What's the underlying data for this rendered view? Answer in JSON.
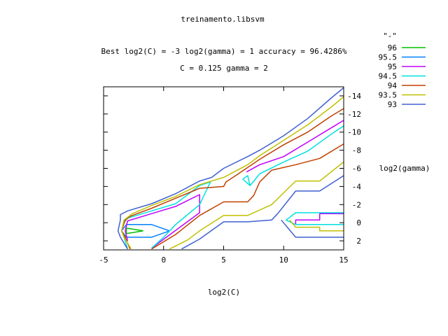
{
  "chart_data": {
    "type": "contour",
    "title": "treinamento.libsvm",
    "subtitle_1": "Best log2(C) = -3  log2(gamma) = 1  accuracy = 96.4286%",
    "subtitle_2": "C = 0.125  gamma = 2",
    "xlabel": "log2(C)",
    "ylabel": "log2(gamma)",
    "legend_title": "\"-\"",
    "legend_placement": "top-right",
    "grid": false,
    "xlim": [
      -5,
      15
    ],
    "ylim": [
      3,
      -15
    ],
    "x_ticks": [
      {
        "value": -5,
        "label": "-5"
      },
      {
        "value": 0,
        "label": "0"
      },
      {
        "value": 5,
        "label": "5"
      },
      {
        "value": 10,
        "label": "10"
      },
      {
        "value": 15,
        "label": "15"
      }
    ],
    "y_ticks": [
      {
        "value": -14,
        "label": "-14"
      },
      {
        "value": -12,
        "label": "-12"
      },
      {
        "value": -10,
        "label": "-10"
      },
      {
        "value": -8,
        "label": "-8"
      },
      {
        "value": -6,
        "label": "-6"
      },
      {
        "value": -4,
        "label": "-4"
      },
      {
        "value": -2,
        "label": "-2"
      },
      {
        "value": 0,
        "label": "0"
      },
      {
        "value": 2,
        "label": "2"
      }
    ],
    "series": [
      {
        "name": "96",
        "color": "#00c000",
        "lines": [
          [
            [
              -1.7,
              0.9
            ],
            [
              -3.1,
              0.6
            ],
            [
              -3.1,
              1.2
            ],
            [
              -1.7,
              0.9
            ]
          ]
        ]
      },
      {
        "name": "95.5",
        "color": "#0080ff",
        "lines": [
          [
            [
              0.5,
              0.9
            ],
            [
              -1.0,
              0.2
            ],
            [
              -3.1,
              0.2
            ],
            [
              -3.5,
              0.9
            ],
            [
              -3.1,
              1.6
            ],
            [
              -1.0,
              1.6
            ],
            [
              0.5,
              0.9
            ]
          ]
        ]
      },
      {
        "name": "95",
        "color": "#c000ff",
        "lines": [
          [
            [
              -3.0,
              2.0
            ],
            [
              -3.2,
              0.9
            ],
            [
              -3.0,
              -0.2
            ],
            [
              -1.0,
              -1.0
            ],
            [
              1.0,
              -1.8
            ],
            [
              3.0,
              -3.1
            ],
            [
              3.0,
              -1.1
            ],
            [
              -1.0,
              2.8
            ]
          ],
          [
            [
              6.9,
              -5.6
            ],
            [
              8.0,
              -6.4
            ],
            [
              10.0,
              -7.3
            ],
            [
              12.0,
              -8.9
            ],
            [
              14.0,
              -10.5
            ],
            [
              15.0,
              -11.3
            ]
          ],
          [
            [
              11.0,
              0.2
            ],
            [
              11.0,
              -0.3
            ],
            [
              13.0,
              -0.3
            ],
            [
              13.0,
              -1.0
            ],
            [
              15.0,
              -1.0
            ]
          ]
        ]
      },
      {
        "name": "94.5",
        "color": "#00e0e0",
        "lines": [
          [
            [
              -3.0,
              2.9
            ],
            [
              -3.3,
              1.6
            ],
            [
              -3.5,
              0.9
            ],
            [
              -3.3,
              0.0
            ],
            [
              -3.0,
              -0.5
            ],
            [
              -1.0,
              -1.3
            ],
            [
              1.0,
              -2.1
            ],
            [
              3.0,
              -4.1
            ],
            [
              3.9,
              -4.5
            ],
            [
              3.0,
              -2.0
            ],
            [
              1.0,
              0.2
            ],
            [
              0.0,
              1.6
            ],
            [
              -1.0,
              2.8
            ]
          ],
          [
            [
              6.6,
              -4.8
            ],
            [
              7.0,
              -5.2
            ],
            [
              7.2,
              -4.1
            ],
            [
              6.6,
              -4.8
            ]
          ],
          [
            [
              7.2,
              -4.1
            ],
            [
              8.0,
              -5.4
            ],
            [
              10.0,
              -6.7
            ],
            [
              12.0,
              -7.9
            ],
            [
              14.0,
              -9.8
            ],
            [
              15.0,
              -10.7
            ]
          ],
          [
            [
              11.0,
              0.2
            ],
            [
              10.2,
              -0.3
            ],
            [
              11.0,
              -1.1
            ],
            [
              15.0,
              -1.1
            ],
            [
              15.0,
              -1.1
            ]
          ],
          [
            [
              11.0,
              0.2
            ],
            [
              11.0,
              0.2
            ],
            [
              15.0,
              0.2
            ]
          ]
        ]
      },
      {
        "name": "94",
        "color": "#c04000",
        "lines": [
          [
            [
              -2.8,
              2.9
            ],
            [
              -3.2,
              1.6
            ],
            [
              -3.5,
              0.9
            ],
            [
              -3.2,
              -0.3
            ],
            [
              -2.8,
              -0.7
            ],
            [
              -1.0,
              -1.6
            ],
            [
              1.0,
              -2.7
            ],
            [
              3.0,
              -3.8
            ],
            [
              5.0,
              -4.0
            ],
            [
              5.2,
              -4.5
            ],
            [
              6.0,
              -5.2
            ],
            [
              7.0,
              -6.1
            ],
            [
              8.0,
              -7.0
            ],
            [
              10.0,
              -8.6
            ],
            [
              12.0,
              -10.0
            ],
            [
              14.0,
              -11.8
            ],
            [
              15.0,
              -12.6
            ]
          ],
          [
            [
              -1.0,
              2.9
            ],
            [
              1.0,
              1.3
            ],
            [
              3.0,
              -0.8
            ],
            [
              5.0,
              -2.3
            ],
            [
              7.0,
              -2.3
            ],
            [
              7.5,
              -3.0
            ],
            [
              8.0,
              -4.5
            ],
            [
              9.0,
              -5.8
            ],
            [
              11.0,
              -6.4
            ],
            [
              13.0,
              -7.1
            ],
            [
              15.0,
              -8.7
            ]
          ]
        ]
      },
      {
        "name": "93.5",
        "color": "#c0c000",
        "lines": [
          [
            [
              -2.7,
              2.9
            ],
            [
              -3.3,
              1.6
            ],
            [
              -3.5,
              0.9
            ],
            [
              -3.3,
              -0.3
            ],
            [
              -2.6,
              -1.0
            ],
            [
              -1.0,
              -1.9
            ],
            [
              1.0,
              -2.9
            ],
            [
              3.0,
              -4.2
            ],
            [
              5.0,
              -5.0
            ],
            [
              7.0,
              -6.4
            ],
            [
              8.0,
              -7.4
            ],
            [
              10.0,
              -9.1
            ],
            [
              12.0,
              -10.8
            ],
            [
              14.0,
              -12.8
            ],
            [
              15.0,
              -13.9
            ]
          ],
          [
            [
              0.5,
              2.9
            ],
            [
              2.0,
              1.9
            ],
            [
              3.0,
              0.9
            ],
            [
              5.0,
              -0.8
            ],
            [
              7.0,
              -0.8
            ],
            [
              9.0,
              -2.0
            ],
            [
              11.0,
              -4.6
            ],
            [
              13.0,
              -4.6
            ],
            [
              15.0,
              -6.7
            ]
          ],
          [
            [
              10.5,
              -0.3
            ],
            [
              11.0,
              0.5
            ],
            [
              13.0,
              0.5
            ],
            [
              13.0,
              0.9
            ],
            [
              15.0,
              0.9
            ]
          ]
        ]
      },
      {
        "name": "93",
        "color": "#4060d0",
        "lines": [
          [
            [
              -3.0,
              2.9
            ],
            [
              -3.6,
              1.6
            ],
            [
              -3.8,
              0.9
            ],
            [
              -3.6,
              -0.3
            ],
            [
              -3.6,
              -0.9
            ],
            [
              -3.0,
              -1.3
            ],
            [
              -1.0,
              -2.1
            ],
            [
              1.0,
              -3.2
            ],
            [
              3.0,
              -4.6
            ],
            [
              4.0,
              -5.0
            ],
            [
              5.0,
              -6.0
            ],
            [
              7.0,
              -7.3
            ],
            [
              8.0,
              -8.0
            ],
            [
              10.0,
              -9.6
            ],
            [
              12.0,
              -11.5
            ],
            [
              14.0,
              -13.8
            ],
            [
              15.0,
              -14.9
            ]
          ],
          [
            [
              1.5,
              2.9
            ],
            [
              3.0,
              1.8
            ],
            [
              5.0,
              -0.1
            ],
            [
              7.0,
              -0.1
            ],
            [
              9.0,
              -0.3
            ],
            [
              9.5,
              -1.0
            ],
            [
              11.0,
              -3.5
            ],
            [
              13.0,
              -3.5
            ],
            [
              15.0,
              -5.2
            ]
          ],
          [
            [
              9.8,
              -0.3
            ],
            [
              10.3,
              0.5
            ],
            [
              11.0,
              1.6
            ],
            [
              13.0,
              1.6
            ],
            [
              15.0,
              1.6
            ]
          ]
        ]
      }
    ]
  }
}
